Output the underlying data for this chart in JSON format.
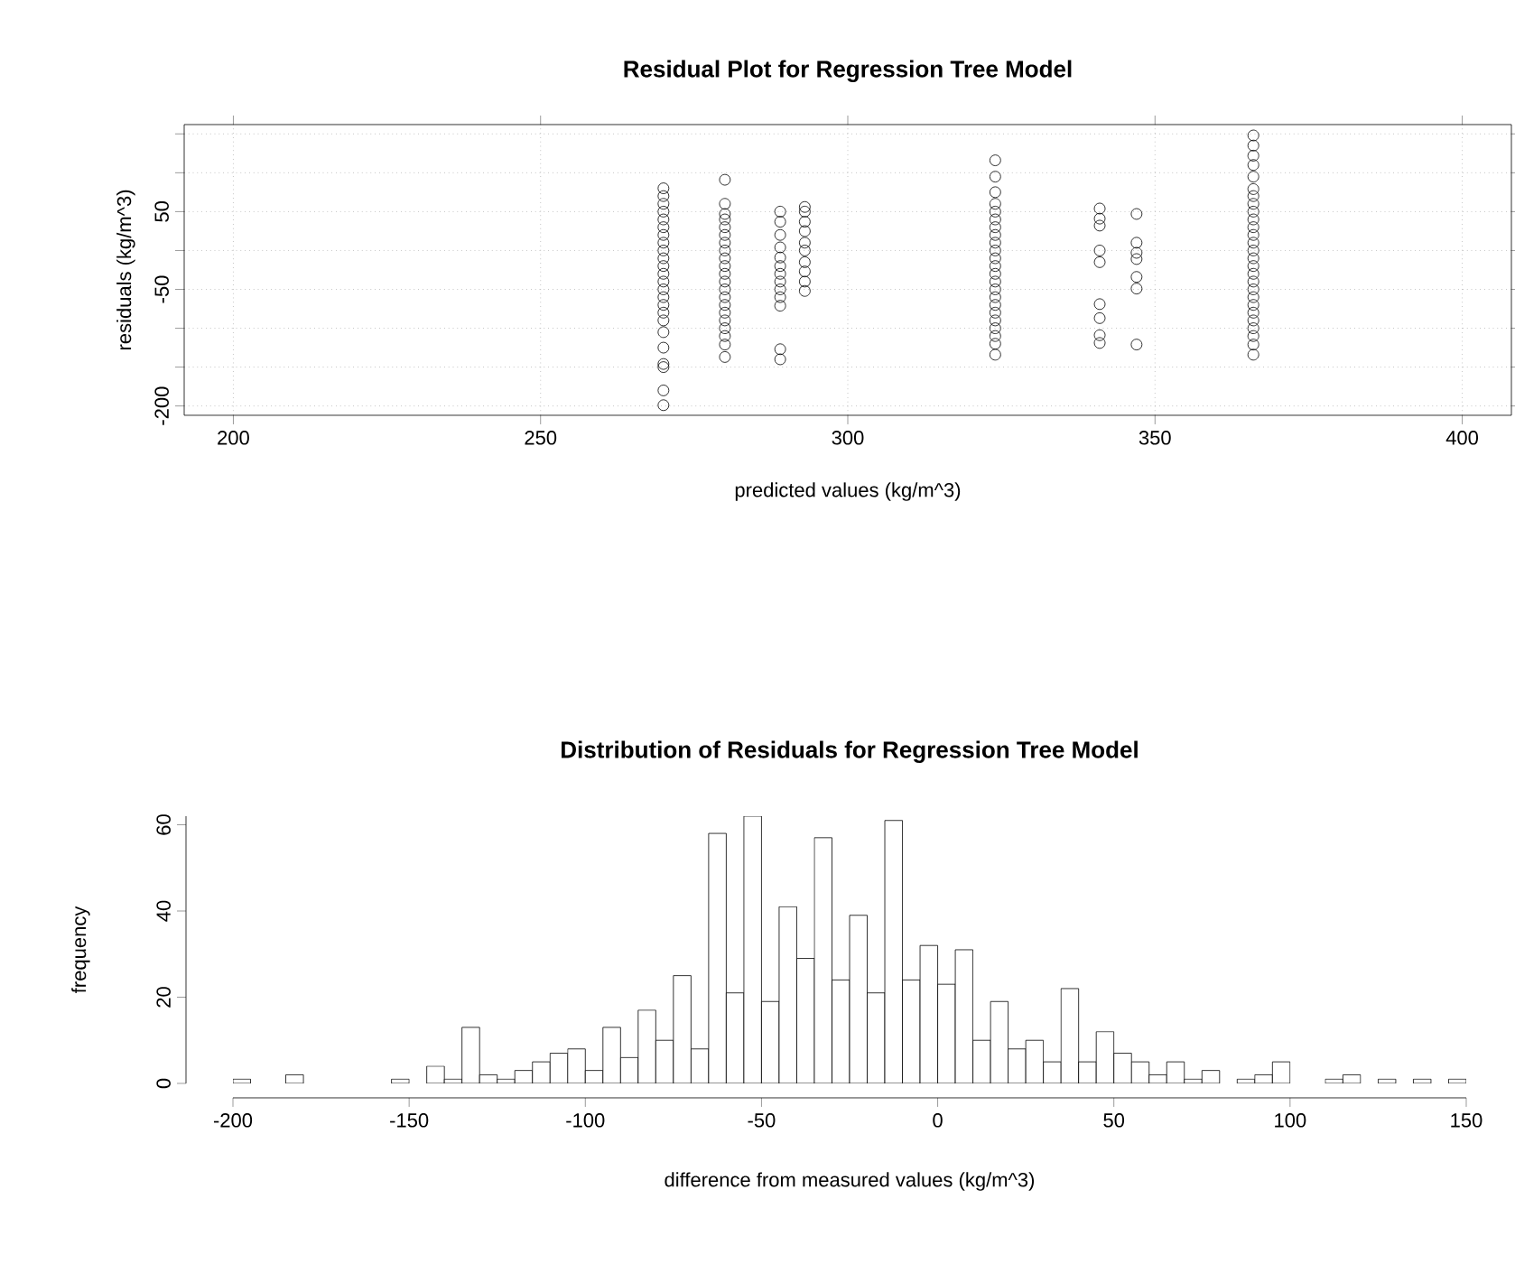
{
  "chart_data": [
    {
      "type": "scatter",
      "title": "Residual Plot for Regression Tree Model",
      "xlabel": "predicted values (kg/m^3)",
      "ylabel": "residuals (kg/m^3)",
      "x": [
        270,
        270,
        270,
        270,
        270,
        270,
        270,
        270,
        270,
        270,
        270,
        270,
        270,
        270,
        270,
        270,
        270,
        270,
        270,
        270,
        270,
        270,
        270,
        270,
        280,
        280,
        280,
        280,
        280,
        280,
        280,
        280,
        280,
        280,
        280,
        280,
        280,
        280,
        280,
        280,
        280,
        280,
        280,
        280,
        280,
        289,
        289,
        289,
        289,
        289,
        289,
        289,
        289,
        289,
        289,
        289,
        289,
        289,
        293,
        293,
        293,
        293,
        293,
        293,
        293,
        293,
        293,
        293,
        324,
        324,
        324,
        324,
        324,
        324,
        324,
        324,
        324,
        324,
        324,
        324,
        324,
        324,
        324,
        324,
        324,
        324,
        324,
        324,
        324,
        324,
        324,
        341,
        341,
        341,
        341,
        341,
        341,
        341,
        341,
        341,
        347,
        347,
        347,
        347,
        347,
        347,
        347,
        366,
        366,
        366,
        366,
        366,
        366,
        366,
        366,
        366,
        366,
        366,
        366,
        366,
        366,
        366,
        366,
        366,
        366,
        366,
        366,
        366,
        366,
        366,
        366,
        366,
        366,
        366
      ],
      "values": [
        80,
        70,
        60,
        50,
        40,
        30,
        20,
        10,
        0,
        -10,
        -20,
        -30,
        -40,
        -50,
        -60,
        -70,
        -80,
        -90,
        -105,
        -125,
        -146,
        -150,
        -180,
        -199,
        91,
        60,
        47,
        40,
        30,
        20,
        10,
        0,
        -10,
        -20,
        -30,
        -40,
        -50,
        -60,
        -70,
        -80,
        -90,
        -100,
        -110,
        -121,
        -137,
        50,
        37,
        20,
        4,
        -9,
        -20,
        -30,
        -40,
        -50,
        -60,
        -71,
        -127,
        -140,
        56,
        50,
        37,
        25,
        10,
        0,
        -15,
        -27,
        -40,
        -52,
        116,
        95,
        75,
        60,
        50,
        40,
        30,
        20,
        10,
        0,
        -10,
        -20,
        -30,
        -40,
        -50,
        -60,
        -70,
        -80,
        -90,
        -100,
        -110,
        -120,
        -134,
        54,
        41,
        32,
        0,
        -15,
        -69,
        -87,
        -109,
        -119,
        47,
        10,
        -3,
        -11,
        -34,
        -49,
        -121,
        148,
        135,
        122,
        110,
        95,
        79,
        70,
        60,
        50,
        40,
        30,
        20,
        10,
        0,
        -10,
        -20,
        -30,
        -40,
        -50,
        -60,
        -70,
        -80,
        -90,
        -100,
        -110,
        -121,
        -134
      ],
      "color": "#000000",
      "marker": "circle",
      "grid": true,
      "xlim": [
        192,
        408
      ],
      "xticks": [
        200,
        250,
        300,
        350,
        400
      ],
      "ylim": [
        -212,
        162
      ],
      "yticks": [
        -200,
        {
          "value": -150,
          "label": null
        },
        {
          "value": -100,
          "label": null
        },
        -50,
        {
          "value": 0,
          "label": null
        },
        50,
        {
          "value": 100,
          "label": null
        },
        {
          "value": 150,
          "label": null
        }
      ]
    },
    {
      "type": "histogram",
      "title": "Distribution of Residuals for Regression Tree Model",
      "xlabel": "difference from measured values (kg/m^3)",
      "ylabel": "frequency",
      "bins": [
        -200,
        -195,
        -190,
        -185,
        -180,
        -175,
        -170,
        -165,
        -160,
        -155,
        -150,
        -145,
        -140,
        -135,
        -130,
        -125,
        -120,
        -115,
        -110,
        -105,
        -100,
        -95,
        -90,
        -85,
        -80,
        -75,
        -70,
        -65,
        -60,
        -55,
        -50,
        -45,
        -40,
        -35,
        -30,
        -25,
        -20,
        -15,
        -10,
        -5,
        0,
        5,
        10,
        15,
        20,
        25,
        30,
        35,
        40,
        45,
        50,
        55,
        60,
        65,
        70,
        75,
        80,
        85,
        90,
        95,
        100,
        105,
        110,
        115,
        120,
        125,
        130,
        135,
        140,
        145,
        150
      ],
      "values": [
        1,
        0,
        0,
        2,
        0,
        0,
        0,
        0,
        0,
        1,
        0,
        4,
        1,
        13,
        2,
        1,
        3,
        5,
        7,
        8,
        3,
        13,
        6,
        17,
        10,
        25,
        8,
        58,
        21,
        62,
        19,
        41,
        29,
        57,
        24,
        39,
        21,
        61,
        24,
        32,
        23,
        31,
        10,
        19,
        8,
        10,
        5,
        22,
        5,
        12,
        7,
        5,
        2,
        5,
        1,
        3,
        0,
        1,
        2,
        5,
        0,
        0,
        1,
        2,
        0,
        1,
        0,
        1,
        0,
        1
      ],
      "color": "#ffffff",
      "xlim": [
        -200,
        150
      ],
      "xticks": [
        -200,
        -150,
        -100,
        -50,
        0,
        50,
        100,
        150
      ],
      "ylim": [
        0,
        62
      ],
      "yticks": [
        0,
        20,
        40,
        60
      ]
    }
  ]
}
